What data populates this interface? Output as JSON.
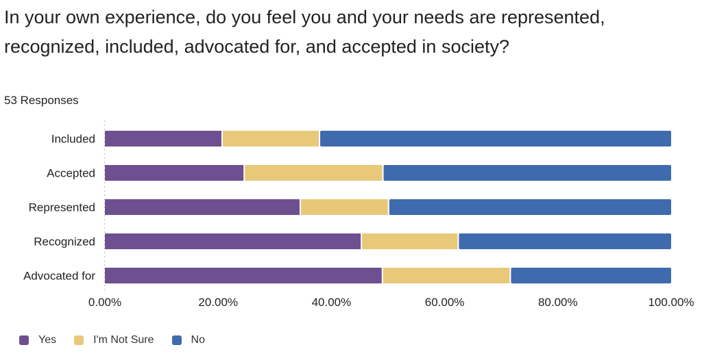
{
  "title": "In your own experience, do you feel you and your needs are represented, recognized, included, advocated for, and accepted in society?",
  "subtitle": "53 Responses",
  "chart_data": {
    "type": "bar",
    "orientation": "horizontal",
    "stacked": true,
    "title": "In your own experience, do you feel you and your needs are represented, recognized, included, advocated for, and accepted in society?",
    "subtitle": "53 Responses",
    "xlabel": "",
    "ylabel": "",
    "xlim": [
      0,
      100
    ],
    "x_ticks": [
      "0.00%",
      "20.00%",
      "40.00%",
      "60.00%",
      "80.00%",
      "100.00%"
    ],
    "categories": [
      "Included",
      "Accepted",
      "Represented",
      "Recognized",
      "Advocated for"
    ],
    "series": [
      {
        "name": "Yes",
        "color": "#6e5090",
        "values": [
          20.7,
          24.6,
          34.5,
          45.3,
          49.0
        ]
      },
      {
        "name": "I'm Not Sure",
        "color": "#e8c97a",
        "values": [
          17.2,
          24.5,
          15.6,
          17.1,
          22.6
        ]
      },
      {
        "name": "No",
        "color": "#3f6bae",
        "values": [
          62.1,
          50.9,
          49.9,
          37.6,
          28.4
        ]
      }
    ],
    "grid": false,
    "legend": "bottom-left"
  }
}
